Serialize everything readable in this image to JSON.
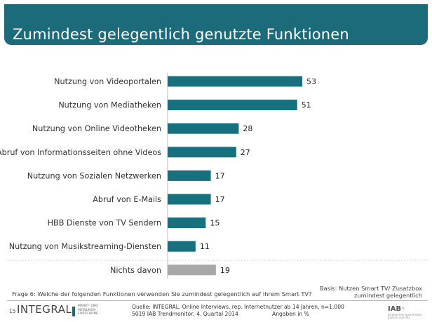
{
  "header": {
    "title": "Zumindest gelegentlich genutzte Funktionen"
  },
  "chart_data": {
    "type": "bar",
    "orientation": "horizontal",
    "title": "Zumindest gelegentlich genutzte Funktionen",
    "unit": "Angaben in %",
    "categories": [
      "Nutzung von Videoportalen",
      "Nutzung von Mediatheken",
      "Nutzung von Online Videotheken",
      "Abruf von Informationsseiten ohne Videos",
      "Nutzung von Sozialen Netzwerken",
      "Abruf von E-Mails",
      "HBB Dienste von TV Sendern",
      "Nutzung von Musikstreaming-Diensten",
      "Nichts davon"
    ],
    "values": [
      53,
      51,
      28,
      27,
      17,
      17,
      15,
      11,
      19
    ],
    "value_labels": [
      "53",
      "51",
      "28",
      "27",
      "17",
      "17",
      "15",
      "11",
      "19"
    ],
    "bar_colors": [
      "#17707e",
      "#17707e",
      "#17707e",
      "#17707e",
      "#17707e",
      "#17707e",
      "#17707e",
      "#17707e",
      "#a8a8a8"
    ],
    "xlim": [
      0,
      53
    ],
    "gridlines": false,
    "legend": "none"
  },
  "footnotes": {
    "question": "Frage 6: Welche der folgenden Funktionen verwenden Sie zumindest gelegentlich auf Ihrem Smart TV?",
    "basis_line1": "Basis: Nutzen Smart TV/ Zusatzbox",
    "basis_line2": "zumindest gelegentlich"
  },
  "footer": {
    "page_number": "15",
    "logo_text": "INTEGRAL",
    "logo_subtitle": "MARKT- UND MEINUNGS- FORSCHUNG",
    "source_line1": "Quelle: INTEGRAL, Online Interviews, rep. Internetnutzer ab 14 Jahren, n=1.000",
    "source_line2": "5019 IAB Trendmonitor, 4. Quartal 2014",
    "units": "Angaben in %",
    "iab_logo": "IAB",
    "iab_arrows": "»",
    "iab_subtitle": "INTERACTIVE ADVERTISING BUREAU AUSTRIA"
  },
  "colors": {
    "header_bg": "#1c6b7a",
    "bar": "#17707e",
    "bar_other": "#a8a8a8"
  }
}
